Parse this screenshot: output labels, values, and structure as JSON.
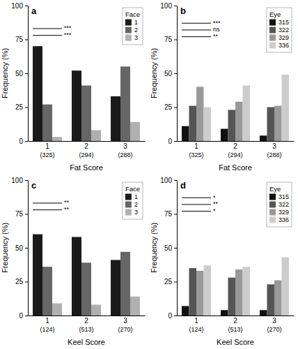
{
  "chart_data": [
    {
      "type": "bar",
      "title": "a",
      "categories": [
        "1",
        "2",
        "3"
      ],
      "category_sublabels": [
        "(325)",
        "(294)",
        "(288)"
      ],
      "series": [
        {
          "name": "1",
          "color": "#1a1a1a",
          "values": [
            70,
            52,
            33
          ]
        },
        {
          "name": "2",
          "color": "#666666",
          "values": [
            27,
            41,
            55
          ]
        },
        {
          "name": "3",
          "color": "#b0b0b0",
          "values": [
            3,
            8,
            14
          ]
        }
      ],
      "legend_title": "Face",
      "x_label": "Fat Score",
      "y_label": "Frequency (%)",
      "ylim": [
        0,
        100
      ],
      "yticks": [
        0,
        25,
        50,
        75,
        100
      ],
      "grid": false,
      "legend": "upper right",
      "annotations": [
        {
          "text": "***",
          "y": 83
        },
        {
          "text": "***",
          "y": 78
        }
      ]
    },
    {
      "type": "bar",
      "title": "b",
      "categories": [
        "1",
        "2",
        "3"
      ],
      "category_sublabels": [
        "(325)",
        "(294)",
        "(288)"
      ],
      "series": [
        {
          "name": "315",
          "color": "#111111",
          "values": [
            11,
            9,
            4
          ]
        },
        {
          "name": "322",
          "color": "#555555",
          "values": [
            26,
            23,
            25
          ]
        },
        {
          "name": "329",
          "color": "#999999",
          "values": [
            40,
            29,
            26
          ]
        },
        {
          "name": "336",
          "color": "#cccccc",
          "values": [
            25,
            41,
            49
          ]
        }
      ],
      "legend_title": "Eye",
      "x_label": "Fat Score",
      "y_label": "Frequency (%)",
      "ylim": [
        0,
        100
      ],
      "yticks": [
        0,
        25,
        50,
        75,
        100
      ],
      "grid": false,
      "legend": "upper right",
      "annotations": [
        {
          "text": "***",
          "y": 87
        },
        {
          "text": "ns",
          "y": 82
        },
        {
          "text": "**",
          "y": 77
        }
      ]
    },
    {
      "type": "bar",
      "title": "c",
      "categories": [
        "1",
        "2",
        "3"
      ],
      "category_sublabels": [
        "(124)",
        "(513)",
        "(270)"
      ],
      "series": [
        {
          "name": "1",
          "color": "#1a1a1a",
          "values": [
            60,
            58,
            41
          ]
        },
        {
          "name": "2",
          "color": "#666666",
          "values": [
            36,
            39,
            47
          ]
        },
        {
          "name": "3",
          "color": "#b0b0b0",
          "values": [
            9,
            8,
            14
          ]
        }
      ],
      "legend_title": "Face",
      "x_label": "Keel Score",
      "y_label": "Frequency (%)",
      "ylim": [
        0,
        100
      ],
      "yticks": [
        0,
        25,
        50,
        75,
        100
      ],
      "grid": false,
      "legend": "upper right",
      "annotations": [
        {
          "text": "**",
          "y": 83
        },
        {
          "text": "**",
          "y": 78
        }
      ]
    },
    {
      "type": "bar",
      "title": "d",
      "categories": [
        "1",
        "2",
        "3"
      ],
      "category_sublabels": [
        "(124)",
        "(513)",
        "(270)"
      ],
      "series": [
        {
          "name": "315",
          "color": "#111111",
          "values": [
            7,
            4,
            4
          ]
        },
        {
          "name": "322",
          "color": "#555555",
          "values": [
            35,
            28,
            23
          ]
        },
        {
          "name": "329",
          "color": "#999999",
          "values": [
            33,
            34,
            26
          ]
        },
        {
          "name": "336",
          "color": "#cccccc",
          "values": [
            37,
            36,
            43
          ]
        }
      ],
      "legend_title": "Eye",
      "x_label": "Keel Score",
      "y_label": "Frequency (%)",
      "ylim": [
        0,
        100
      ],
      "yticks": [
        0,
        25,
        50,
        75,
        100
      ],
      "grid": false,
      "legend": "upper right",
      "annotations": [
        {
          "text": "*",
          "y": 87
        },
        {
          "text": "**",
          "y": 82
        },
        {
          "text": "*",
          "y": 77
        }
      ]
    }
  ]
}
